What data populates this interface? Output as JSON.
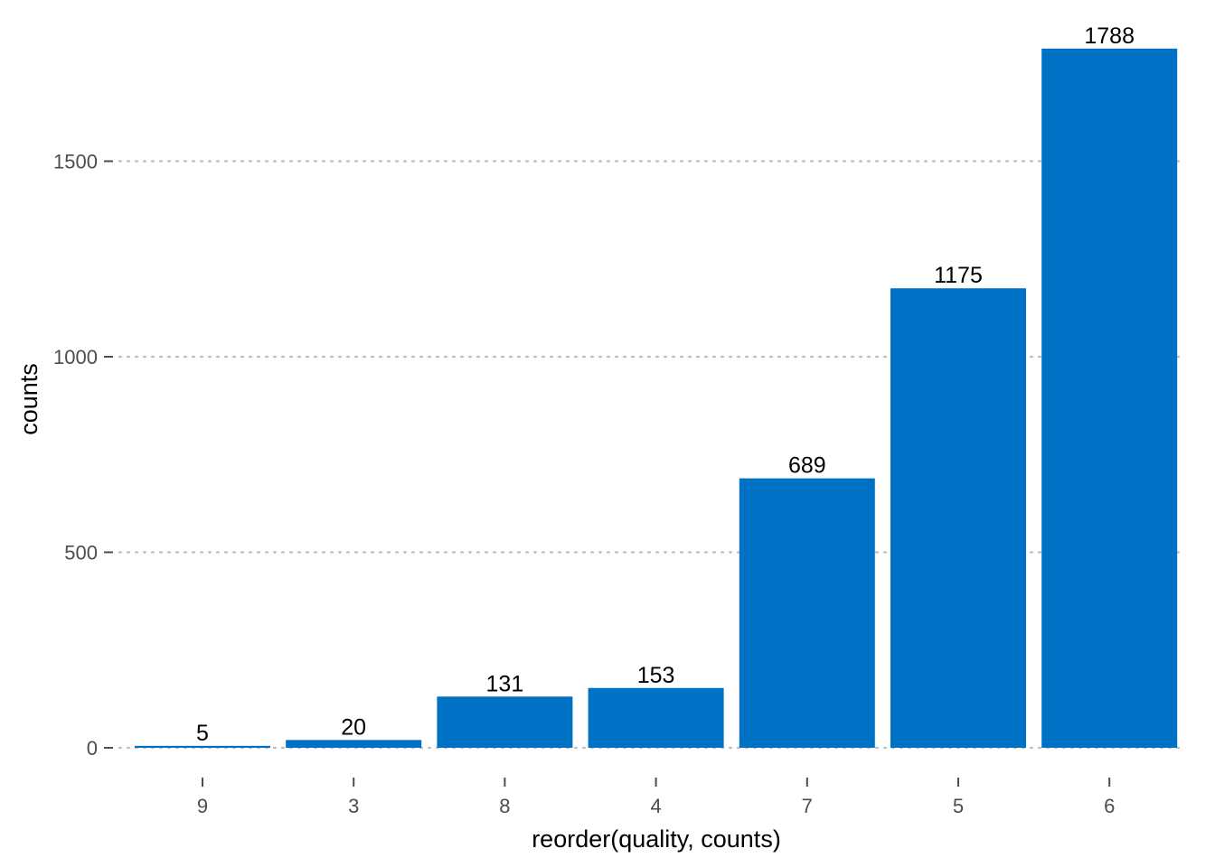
{
  "chart_data": {
    "type": "bar",
    "title": "",
    "xlabel": "reorder(quality, counts)",
    "ylabel": "counts",
    "categories": [
      "9",
      "3",
      "8",
      "4",
      "7",
      "5",
      "6"
    ],
    "values": [
      5,
      20,
      131,
      153,
      689,
      1175,
      1788
    ],
    "data_labels": [
      "5",
      "20",
      "131",
      "153",
      "689",
      "1175",
      "1788"
    ],
    "yticks": [
      0,
      500,
      1000,
      1500
    ],
    "ytick_labels": [
      "0",
      "500",
      "1000",
      "1500"
    ],
    "ylim": [
      0,
      1788
    ],
    "grid": "horizontal dotted major lines",
    "legend": "none",
    "colors": {
      "bar": "#0072c6",
      "grid": "#bebebe",
      "tick_mark": "#4d4d4d",
      "tick_label": "#4d4d4d",
      "axis_title": "#000000",
      "data_label": "#000000"
    }
  }
}
